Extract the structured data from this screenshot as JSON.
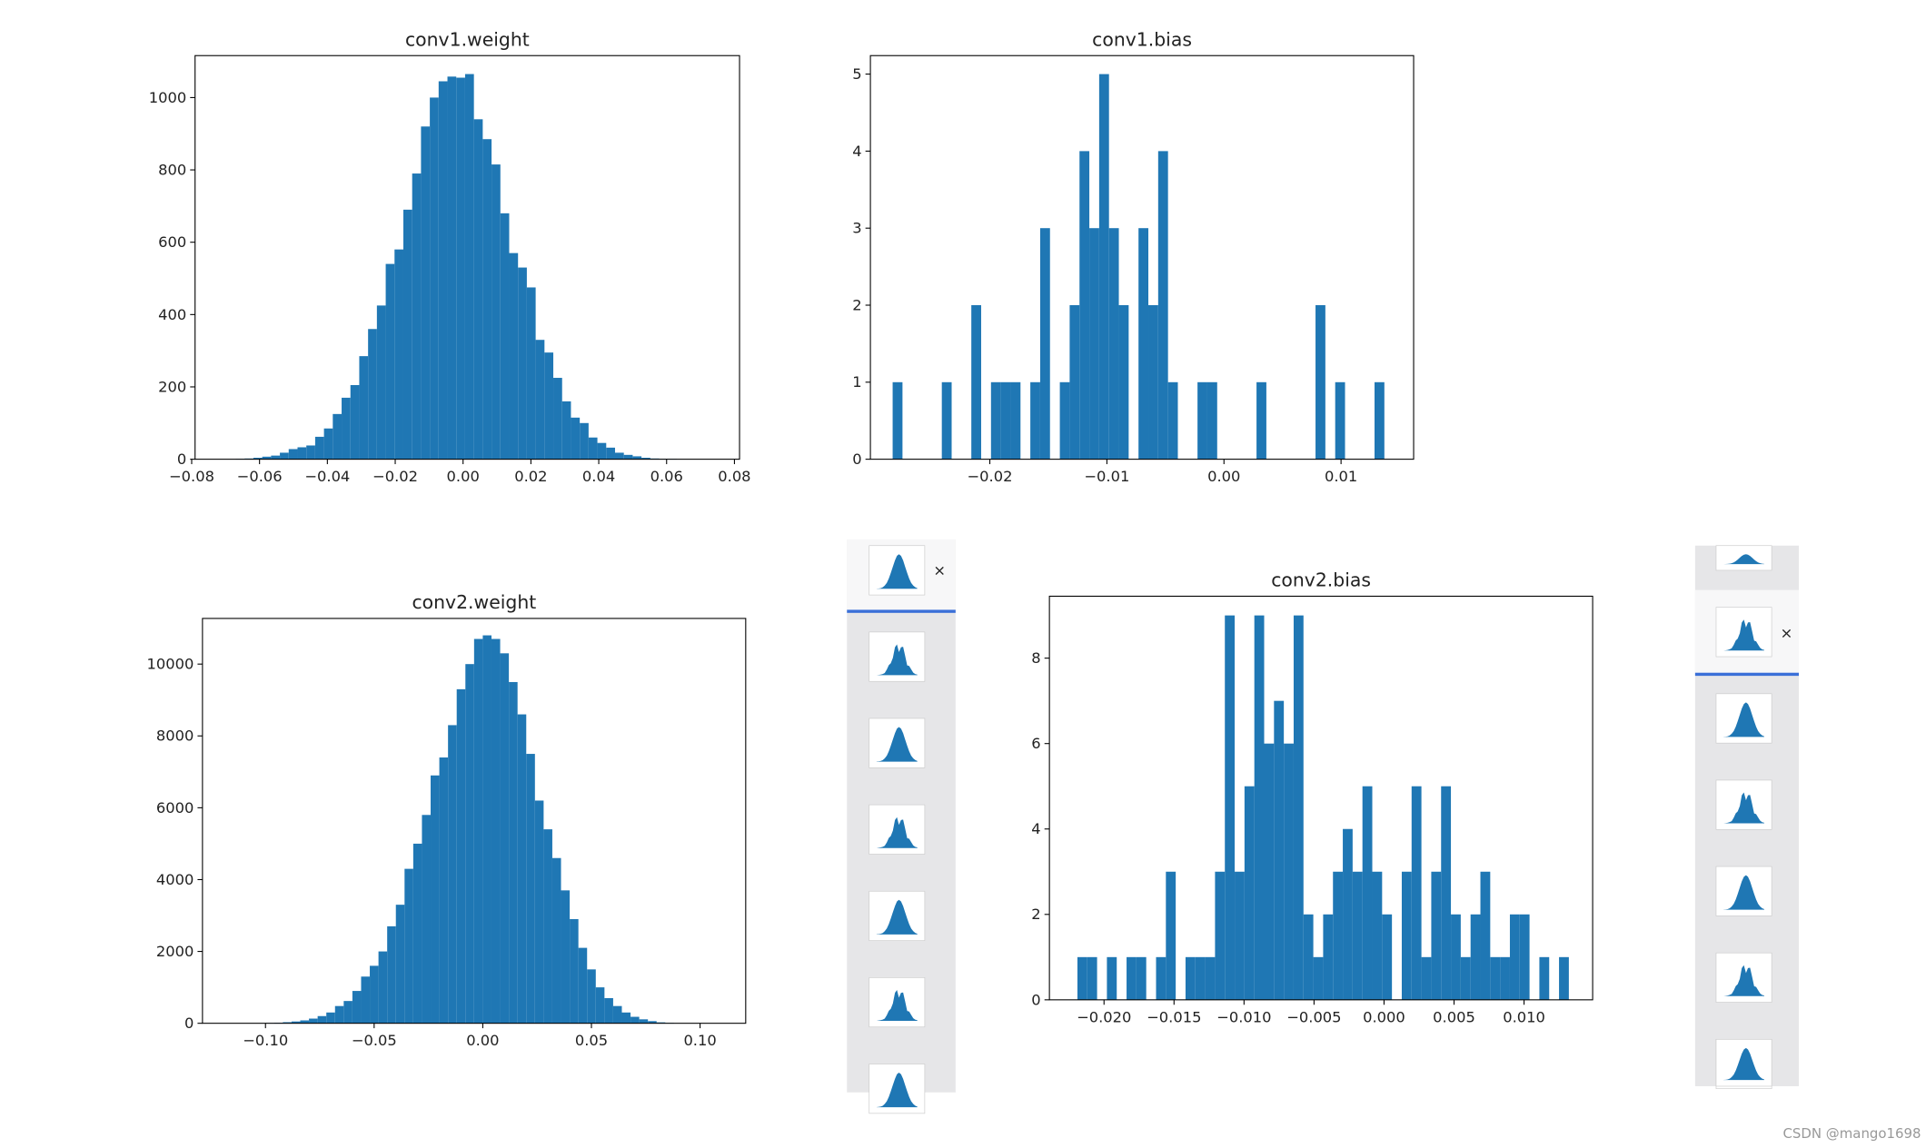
{
  "chart_data": [
    {
      "type": "histogram",
      "title": "conv1.weight",
      "color": "#1f77b4",
      "grid": false,
      "bins": [
        -0.067,
        -0.0644,
        -0.0618,
        -0.0592,
        -0.0566,
        -0.054,
        -0.0514,
        -0.0488,
        -0.0462,
        -0.0436,
        -0.041,
        -0.0384,
        -0.0358,
        -0.0332,
        -0.0306,
        -0.028,
        -0.0254,
        -0.0228,
        -0.0202,
        -0.0176,
        -0.015,
        -0.0124,
        -0.0098,
        -0.0072,
        -0.0046,
        -0.002,
        0.0006,
        0.0032,
        0.0058,
        0.0084,
        0.011,
        0.0136,
        0.0162,
        0.0188,
        0.0214,
        0.024,
        0.0266,
        0.0292,
        0.0318,
        0.0344,
        0.037,
        0.0396,
        0.0422,
        0.0448,
        0.0474,
        0.05,
        0.0526,
        0.0552,
        0.0578,
        0.0604,
        0.063
      ],
      "values": [
        1,
        2,
        4,
        7,
        10,
        18,
        28,
        33,
        38,
        62,
        85,
        125,
        170,
        205,
        285,
        360,
        425,
        540,
        580,
        690,
        790,
        920,
        1000,
        1045,
        1058,
        1055,
        1065,
        940,
        885,
        815,
        680,
        570,
        530,
        475,
        330,
        295,
        225,
        160,
        115,
        100,
        60,
        45,
        32,
        18,
        12,
        8,
        4,
        2,
        1,
        1
      ],
      "xlim": [
        -0.079,
        0.0815
      ],
      "ylim": [
        0,
        1116
      ],
      "xticks": [
        {
          "value": -0.08,
          "label": "−0.08"
        },
        {
          "value": -0.06,
          "label": "−0.06"
        },
        {
          "value": -0.04,
          "label": "−0.04"
        },
        {
          "value": -0.02,
          "label": "−0.02"
        },
        {
          "value": 0,
          "label": "0.00"
        },
        {
          "value": 0.02,
          "label": "0.02"
        },
        {
          "value": 0.04,
          "label": "0.04"
        },
        {
          "value": 0.06,
          "label": "0.06"
        },
        {
          "value": 0.08,
          "label": "0.08"
        }
      ],
      "yticks": [
        0,
        200,
        400,
        600,
        800,
        1000
      ]
    },
    {
      "type": "histogram",
      "title": "conv1.bias",
      "color": "#1f77b4",
      "grid": false,
      "bins": [
        -0.0283,
        -0.02746,
        -0.02662,
        -0.02578,
        -0.02494,
        -0.0241,
        -0.02326,
        -0.02242,
        -0.02158,
        -0.02074,
        -0.0199,
        -0.01906,
        -0.01822,
        -0.01738,
        -0.01654,
        -0.0157,
        -0.01486,
        -0.01402,
        -0.01318,
        -0.01234,
        -0.0115,
        -0.01066,
        -0.00982,
        -0.00898,
        -0.00814,
        -0.0073,
        -0.00646,
        -0.00562,
        -0.00478,
        -0.00394,
        -0.0031,
        -0.00226,
        -0.00142,
        -0.00058,
        0.00026,
        0.0011,
        0.00194,
        0.00278,
        0.00362,
        0.00446,
        0.0053,
        0.00614,
        0.00698,
        0.00782,
        0.00866,
        0.0095,
        0.01034,
        0.01118,
        0.01202,
        0.01286,
        0.0137
      ],
      "values": [
        1,
        0,
        0,
        0,
        0,
        1,
        0,
        0,
        2,
        0,
        1,
        1,
        1,
        0,
        1,
        3,
        0,
        1,
        2,
        4,
        3,
        5,
        3,
        2,
        0,
        3,
        2,
        4,
        1,
        0,
        0,
        1,
        1,
        0,
        0,
        0,
        0,
        1,
        0,
        0,
        0,
        0,
        0,
        2,
        0,
        1,
        0,
        0,
        0,
        1
      ],
      "xlim": [
        -0.0302,
        0.0162
      ],
      "ylim": [
        0,
        5.24
      ],
      "xticks": [
        {
          "value": -0.02,
          "label": "−0.02"
        },
        {
          "value": -0.01,
          "label": "−0.01"
        },
        {
          "value": 0,
          "label": "0.00"
        },
        {
          "value": 0.01,
          "label": "0.01"
        }
      ],
      "yticks": [
        0,
        1,
        2,
        3,
        4,
        5
      ]
    },
    {
      "type": "histogram",
      "title": "conv2.weight",
      "color": "#1f77b4",
      "grid": false,
      "bins": [
        -0.112,
        -0.108,
        -0.104,
        -0.1,
        -0.096,
        -0.092,
        -0.088,
        -0.084,
        -0.08,
        -0.076,
        -0.072,
        -0.068,
        -0.064,
        -0.06,
        -0.056,
        -0.052,
        -0.048,
        -0.044,
        -0.04,
        -0.036,
        -0.032,
        -0.028,
        -0.024,
        -0.02,
        -0.016,
        -0.012,
        -0.008,
        -0.004,
        0,
        0.004,
        0.008,
        0.012,
        0.016,
        0.02,
        0.024,
        0.028,
        0.032,
        0.036,
        0.04,
        0.044,
        0.048,
        0.052,
        0.056,
        0.06,
        0.064,
        0.068,
        0.072,
        0.076,
        0.08,
        0.084,
        0.088
      ],
      "values": [
        1,
        2,
        4,
        8,
        15,
        30,
        50,
        80,
        130,
        200,
        300,
        480,
        620,
        900,
        1300,
        1600,
        2000,
        2700,
        3300,
        4300,
        5000,
        5800,
        6900,
        7400,
        8300,
        9300,
        10000,
        10700,
        10800,
        10700,
        10300,
        9500,
        8600,
        7500,
        6200,
        5400,
        4600,
        3700,
        2900,
        2100,
        1500,
        1000,
        700,
        480,
        300,
        180,
        110,
        60,
        25,
        10
      ],
      "xlim": [
        -0.129,
        0.121
      ],
      "ylim": [
        0,
        11271
      ],
      "xticks": [
        {
          "value": -0.1,
          "label": "−0.10"
        },
        {
          "value": -0.05,
          "label": "−0.05"
        },
        {
          "value": 0,
          "label": "0.00"
        },
        {
          "value": 0.05,
          "label": "0.05"
        },
        {
          "value": 0.1,
          "label": "0.10"
        }
      ],
      "yticks": [
        0,
        2000,
        4000,
        6000,
        8000,
        10000
      ]
    },
    {
      "type": "histogram",
      "title": "conv2.bias",
      "color": "#1f77b4",
      "grid": false,
      "bins": [
        -0.0219,
        -0.021198,
        -0.020496,
        -0.019794,
        -0.019092,
        -0.01839,
        -0.017688,
        -0.016986,
        -0.016284,
        -0.015582,
        -0.01488,
        -0.014178,
        -0.013476,
        -0.012774,
        -0.012072,
        -0.01137,
        -0.010668,
        -0.009966,
        -0.009264,
        -0.008562,
        -0.00786,
        -0.007158,
        -0.006456,
        -0.005754,
        -0.005052,
        -0.00435,
        -0.003648,
        -0.002946,
        -0.002244,
        -0.001542,
        -0.00084,
        -0.000138,
        0.000564,
        0.001266,
        0.001968,
        0.00267,
        0.003372,
        0.004074,
        0.004776,
        0.005478,
        0.00618,
        0.006882,
        0.007584,
        0.008286,
        0.008988,
        0.00969,
        0.010392,
        0.011094,
        0.011796,
        0.012498,
        0.0132
      ],
      "values": [
        1,
        1,
        0,
        1,
        0,
        1,
        1,
        0,
        1,
        3,
        0,
        1,
        1,
        1,
        3,
        9,
        3,
        5,
        9,
        6,
        7,
        6,
        9,
        2,
        1,
        2,
        3,
        4,
        3,
        5,
        3,
        2,
        0,
        3,
        5,
        1,
        3,
        5,
        2,
        1,
        2,
        3,
        1,
        1,
        2,
        2,
        0,
        1,
        0,
        1
      ],
      "xlim": [
        -0.0239,
        0.0149
      ],
      "ylim": [
        0,
        9.45
      ],
      "xticks": [
        {
          "value": -0.02,
          "label": "−0.020"
        },
        {
          "value": -0.015,
          "label": "−0.015"
        },
        {
          "value": -0.01,
          "label": "−0.010"
        },
        {
          "value": -0.005,
          "label": "−0.005"
        },
        {
          "value": 0,
          "label": "0.000"
        },
        {
          "value": 0.005,
          "label": "0.005"
        },
        {
          "value": 0.01,
          "label": "0.010"
        }
      ],
      "yticks": [
        0,
        2,
        4,
        6,
        8
      ]
    }
  ],
  "watermark": "CSDN @mango1698"
}
